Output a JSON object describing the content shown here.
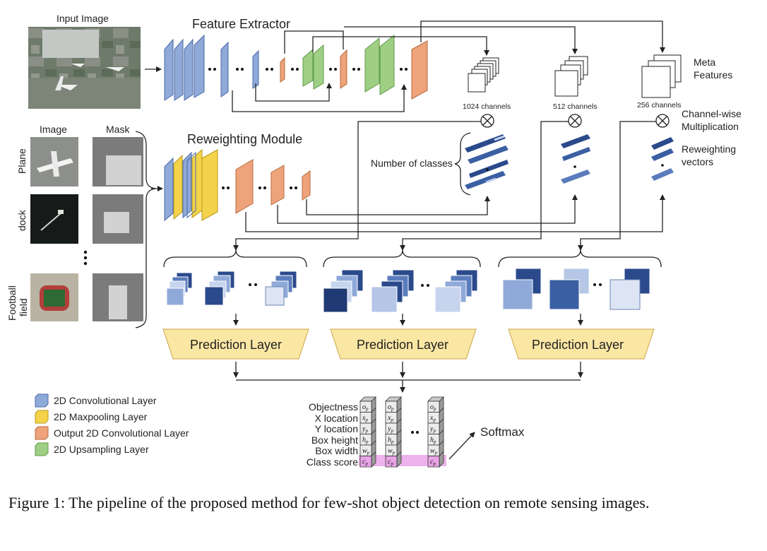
{
  "labels": {
    "input_image": "Input Image",
    "feature_extractor": "Feature Extractor",
    "reweighting_module": "Reweighting Module",
    "image": "Image",
    "mask": "Mask",
    "plane": "Plane",
    "dock": "dock",
    "football_field": [
      "Football",
      "field"
    ],
    "meta_features": [
      "Meta",
      "Features"
    ],
    "channels": [
      "1024 channels",
      "512 channels",
      "256 channels"
    ],
    "channel_wise": [
      "Channel-wise",
      "Multiplication"
    ],
    "reweighting_vectors": [
      "Reweighting",
      "vectors"
    ],
    "number_of_classes": "Number of classes",
    "prediction_layer": "Prediction Layer",
    "softmax": "Softmax"
  },
  "legend": [
    {
      "label": "2D Convolutional Layer",
      "color": "#8fa9d8"
    },
    {
      "label": "2D Maxpooling Layer",
      "color": "#f4d34a"
    },
    {
      "label": "Output 2D Convolutional Layer",
      "color": "#eea37a"
    },
    {
      "label": "2D Upsampling Layer",
      "color": "#9fcf84"
    }
  ],
  "output_rows": [
    "Objectness",
    "X location",
    "Y location",
    "Box height",
    "Box width",
    "Class score"
  ],
  "output_cells": [
    "o",
    "x",
    "y",
    "h",
    "w",
    "c"
  ],
  "output_cell_subscript": "p",
  "caption": "Figure 1: The pipeline of the proposed method for few-shot object detection on remote sensing images.",
  "colors": {
    "highlight": "#e89ae6",
    "pred_fill": "#fbe7a4"
  }
}
